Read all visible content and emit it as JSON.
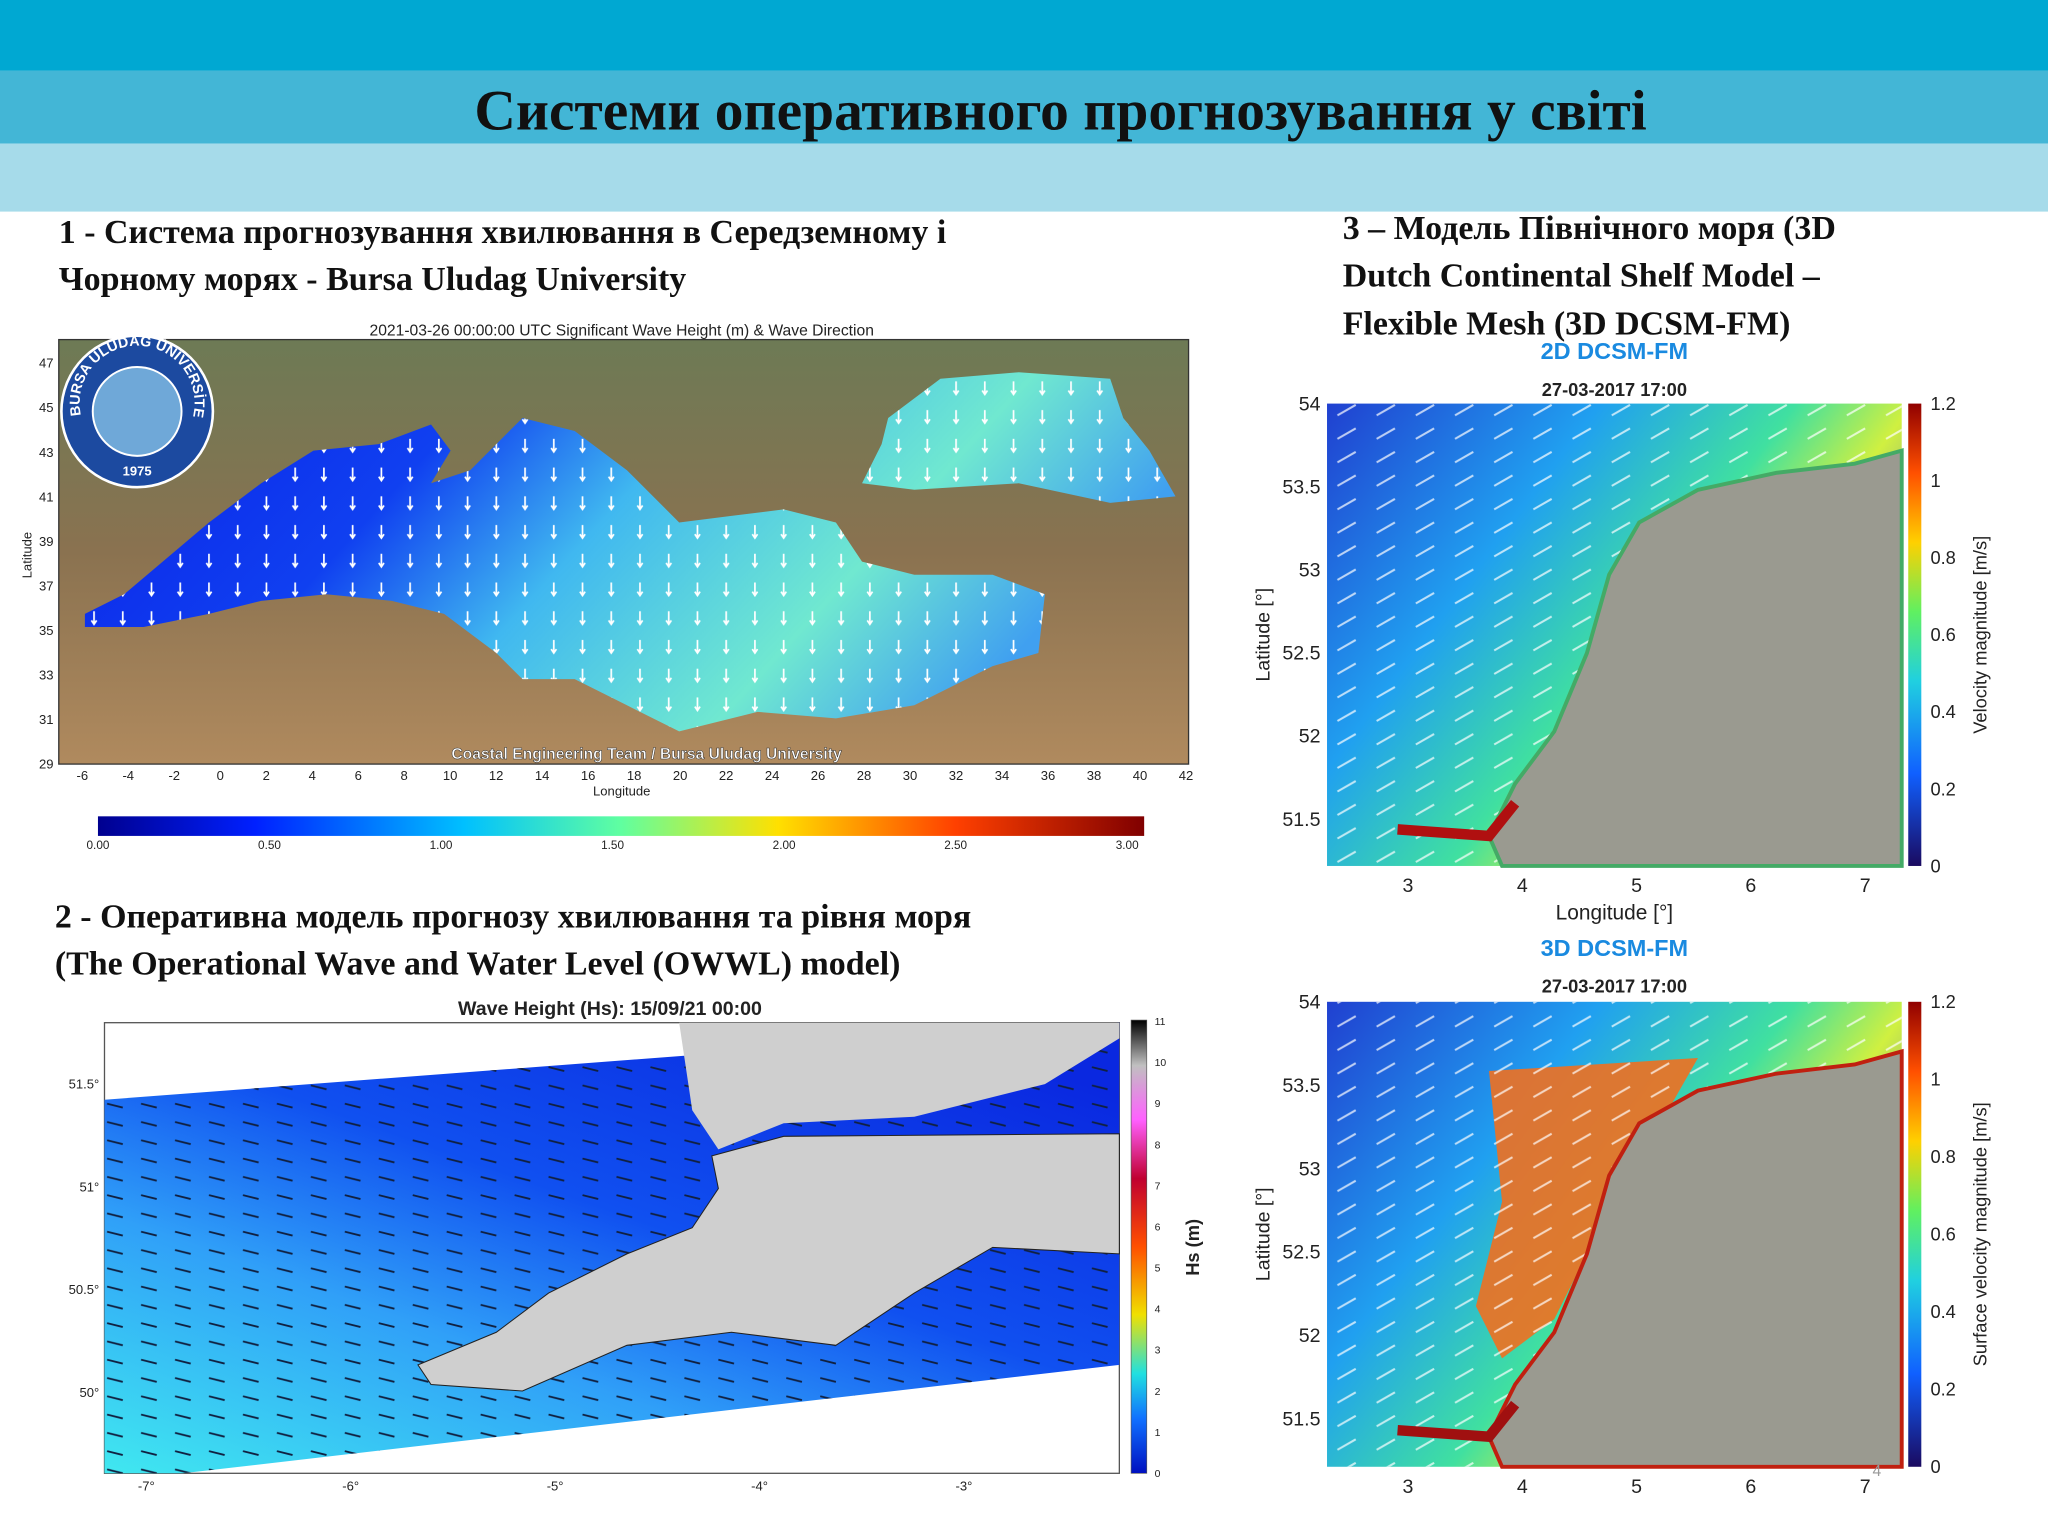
{
  "header": {
    "title": "Системи оперативного прогнозування у світі"
  },
  "sections": [
    {
      "lines": [
        "1 - Система прогнозування хвилювання в Середземному і",
        "Чорному морях  - Bursa Uludag University"
      ]
    },
    {
      "lines": [
        "2 - Оперативна модель прогнозу хвилювання та рівня моря",
        "(The Operational Wave and Water Level (OWWL) model)"
      ]
    },
    {
      "lines": [
        "3 – Модель Північного моря (3D",
        "Dutch Continental Shelf Model –",
        "Flexible Mesh (3D DCSM-FM)"
      ]
    }
  ],
  "figures": {
    "med": {
      "title": "2021-03-26 00:00:00 UTC Significant Wave Height (m) & Wave Direction",
      "y_axis_label": "Latitude",
      "x_axis_label": "Longitude",
      "y_ticks": [
        "47",
        "45",
        "43",
        "41",
        "39",
        "37",
        "35",
        "33",
        "31",
        "29"
      ],
      "x_ticks": [
        "-6",
        "-4",
        "-2",
        "0",
        "2",
        "4",
        "6",
        "8",
        "10",
        "12",
        "14",
        "16",
        "18",
        "20",
        "22",
        "24",
        "26",
        "28",
        "30",
        "32",
        "34",
        "36",
        "38",
        "40",
        "42"
      ],
      "credit": "Coastal Engineering Team / Bursa Uludag University",
      "logo_text": "BURSA ULUDAĞ ÜNİVERSİTESİ",
      "logo_year": "1975",
      "colorbar_ticks": [
        "0.00",
        "0.50",
        "1.00",
        "1.50",
        "2.00",
        "2.50",
        "3.00"
      ]
    },
    "owwl": {
      "title": "Wave Height (Hs): 15/09/21 00:00",
      "y_ticks": [
        "51.5°",
        "51°",
        "50.5°",
        "50°"
      ],
      "x_ticks": [
        "-7°",
        "-6°",
        "-5°",
        "-4°",
        "-3°"
      ],
      "colorbar_label": "Hs (m)",
      "colorbar_ticks": [
        "11",
        "10",
        "9",
        "8",
        "7",
        "6",
        "5",
        "4",
        "3",
        "2",
        "1",
        "0"
      ]
    },
    "dcsm2d": {
      "title": "2D DCSM-FM",
      "timestamp": "27-03-2017 17:00",
      "y_axis_label": "Latitude [°]",
      "x_axis_label": "Longitude [°]",
      "y_ticks": [
        "54",
        "53.5",
        "53",
        "52.5",
        "52",
        "51.5"
      ],
      "x_ticks": [
        "3",
        "4",
        "5",
        "6",
        "7"
      ],
      "colorbar_label": "Velocity magnitude [m/s]",
      "colorbar_ticks": [
        "1.2",
        "1",
        "0.8",
        "0.6",
        "0.4",
        "0.2",
        "0"
      ]
    },
    "dcsm3d": {
      "title": "3D DCSM-FM",
      "timestamp": "27-03-2017 17:00",
      "y_axis_label": "Latitude [°]",
      "y_ticks": [
        "54",
        "53.5",
        "53",
        "52.5",
        "52",
        "51.5"
      ],
      "x_ticks": [
        "3",
        "4",
        "5",
        "6",
        "7"
      ],
      "colorbar_label": "Surface velocity magnitude [m/s]",
      "colorbar_ticks": [
        "1.2",
        "1",
        "0.8",
        "0.6",
        "0.4",
        "0.2",
        "0"
      ]
    }
  },
  "page_number": "4"
}
